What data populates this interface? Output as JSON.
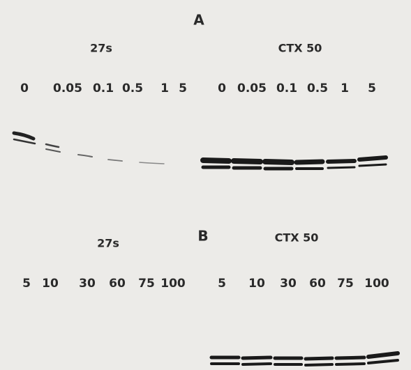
{
  "panels": [
    {
      "label": "A",
      "groups": [
        {
          "name": "27s",
          "lanes": [
            "0",
            "0.05",
            "0.1",
            "0.5",
            "1",
            "5"
          ]
        },
        {
          "name": "CTX 50",
          "lanes": [
            "0",
            "0.05",
            "0.1",
            "0.5",
            "1",
            "5"
          ]
        }
      ]
    },
    {
      "label": "B",
      "groups": [
        {
          "name": "27s",
          "lanes": [
            "5",
            "10",
            "30",
            "60",
            "75",
            "100"
          ]
        },
        {
          "name": "CTX 50",
          "lanes": [
            "5",
            "10",
            "30",
            "60",
            "75",
            "100"
          ]
        }
      ]
    }
  ]
}
